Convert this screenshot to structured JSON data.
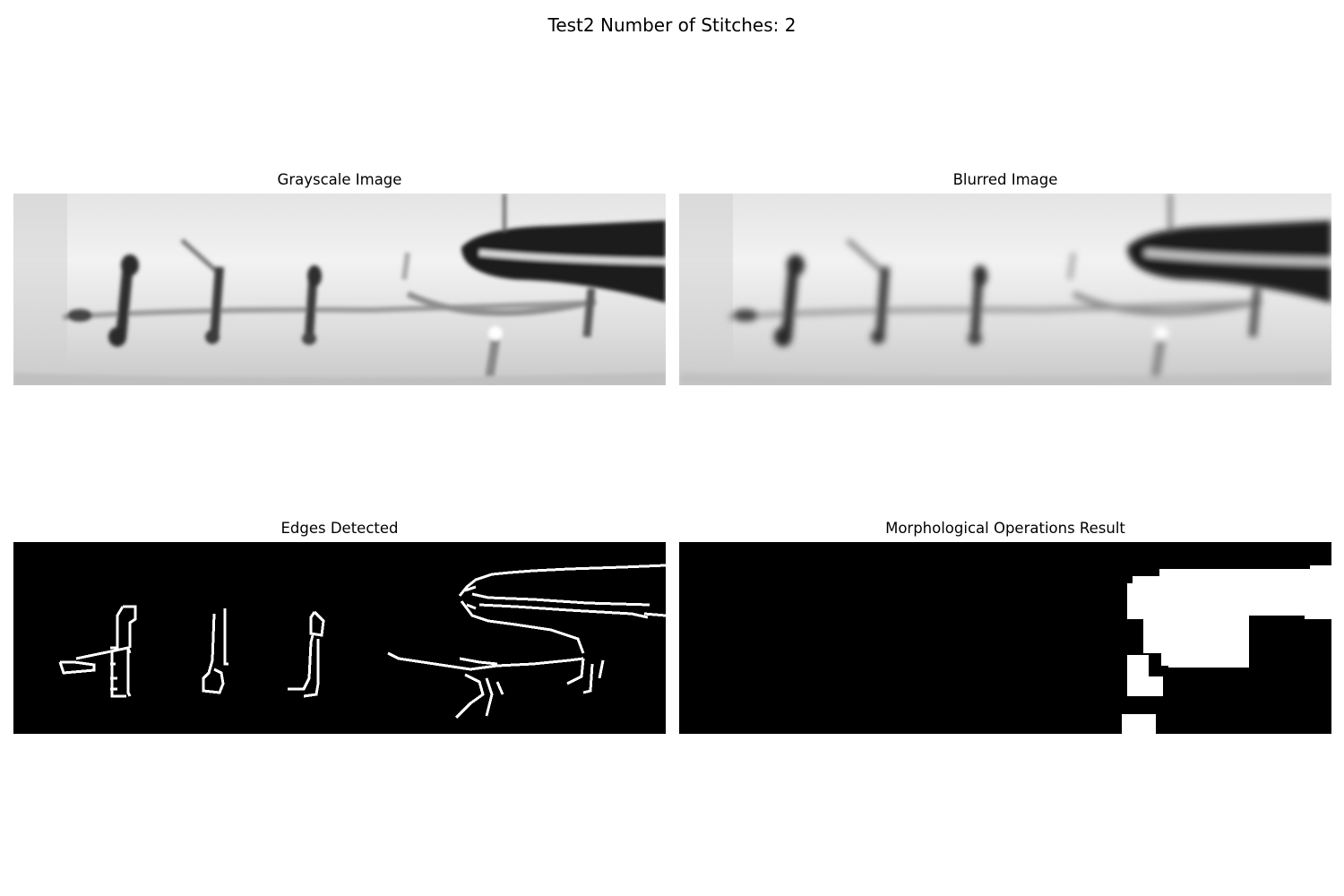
{
  "figure": {
    "suptitle": "Test2 Number of Stitches: 2"
  },
  "panels": [
    {
      "id": "grayscale",
      "title": "Grayscale Image"
    },
    {
      "id": "blurred",
      "title": "Blurred Image"
    },
    {
      "id": "edges",
      "title": "Edges Detected"
    },
    {
      "id": "morph",
      "title": "Morphological Operations Result"
    }
  ]
}
